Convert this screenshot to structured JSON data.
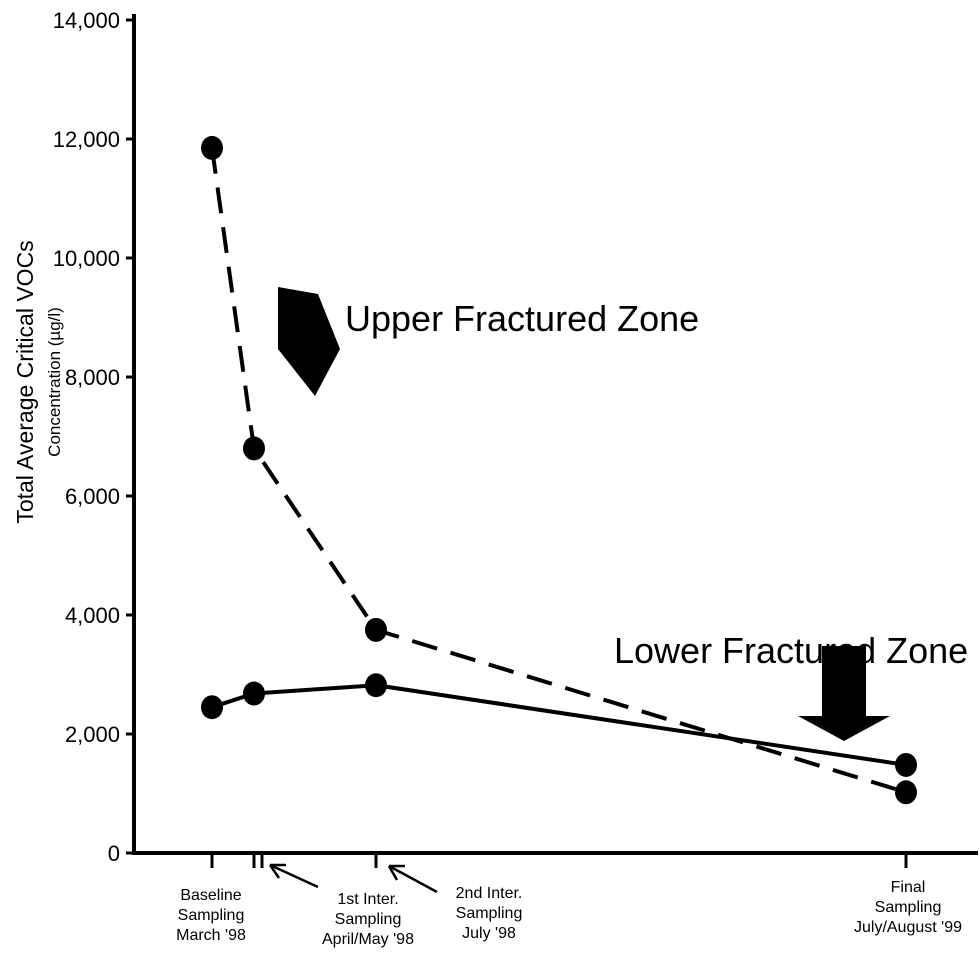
{
  "chart_data": {
    "type": "line",
    "ylabel": "Total Average Critical VOCs",
    "ylabel_sub": "Concentration (µg/l)",
    "ylim": [
      0,
      14000
    ],
    "yticks": [
      0,
      2000,
      4000,
      6000,
      8000,
      10000,
      12000,
      14000
    ],
    "ytick_labels": [
      "0",
      "2,000",
      "4,000",
      "6,000",
      "8,000",
      "10,000",
      "12,000",
      "14,000"
    ],
    "grid": false,
    "categories": [
      [
        "Baseline",
        "Sampling",
        "March '98"
      ],
      [
        "1st Inter.",
        "Sampling",
        "April/May '98"
      ],
      [
        "2nd Inter.",
        "Sampling",
        "July '98"
      ],
      [
        "Final",
        "Sampling",
        "July/August '99"
      ]
    ],
    "series": [
      {
        "name": "Upper Fractured Zone",
        "line_style": "dashed",
        "points": [
          {
            "x": "Baseline Sampling March '98",
            "y": 11850
          },
          {
            "x": "1st Inter. Sampling April/May '98",
            "y": 6800
          },
          {
            "x": "2nd Inter. Sampling July '98",
            "y": 3750
          },
          {
            "x": "Final Sampling July/August '99",
            "y": 1020
          }
        ]
      },
      {
        "name": "Lower Fractured Zone",
        "line_style": "solid",
        "points": [
          {
            "x": "Baseline Sampling March '98",
            "y": 2450
          },
          {
            "x": "1st Inter. Sampling April/May '98",
            "y": 2680
          },
          {
            "x": "2nd Inter. Sampling July '98",
            "y": 2820
          },
          {
            "x": "Final Sampling July/August '99",
            "y": 1480
          }
        ]
      }
    ]
  }
}
